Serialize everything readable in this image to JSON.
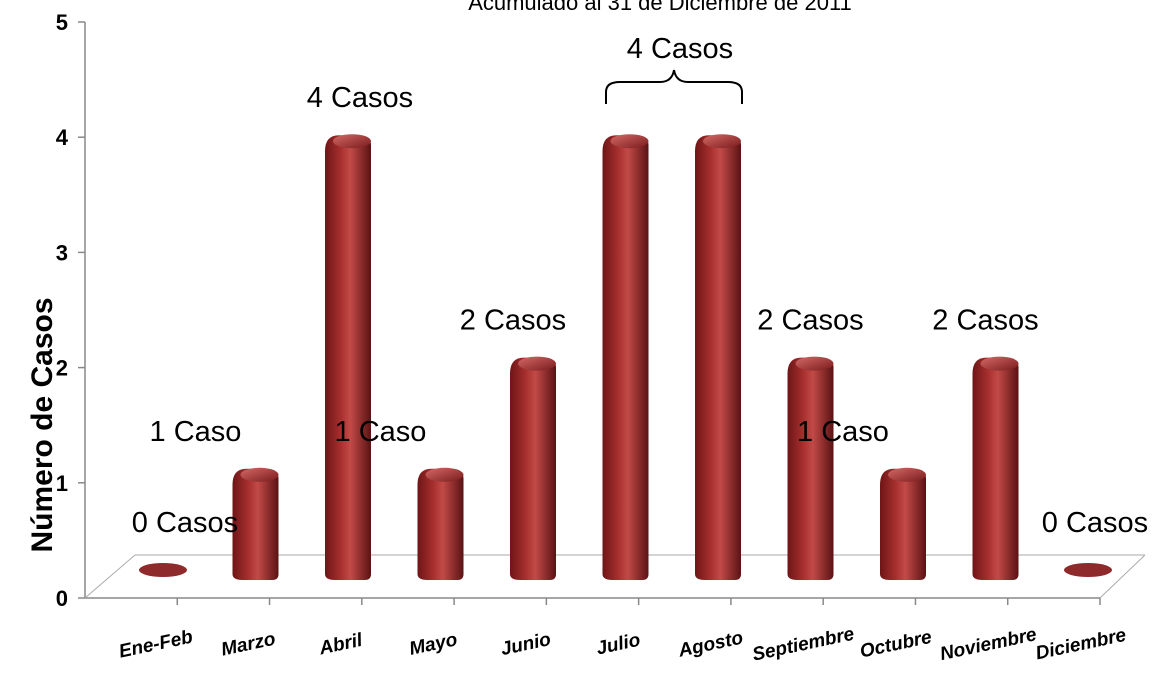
{
  "chart_data": {
    "type": "bar",
    "subtitle": "Acumulado al 31 de Diciembre de 2011",
    "ylabel": "Número de Casos",
    "xlabel": "",
    "ylim": [
      0,
      5
    ],
    "yticks": [
      "0",
      "1",
      "2",
      "3",
      "4",
      "5"
    ],
    "categories": [
      "Ene-Feb",
      "Marzo",
      "Abril",
      "Mayo",
      "Junio",
      "Julio",
      "Agosto",
      "Septiembre",
      "Octubre",
      "Noviembre",
      "Diciembre"
    ],
    "values": [
      0,
      1,
      4,
      1,
      2,
      4,
      4,
      2,
      1,
      2,
      0
    ],
    "data_labels": [
      "0 Casos",
      "1 Caso",
      "4 Casos",
      "1 Caso",
      "2 Casos",
      "",
      "",
      "2 Casos",
      "1 Caso",
      "2 Casos",
      "0 Casos"
    ],
    "group_label": "4 Casos",
    "colors": {
      "bar": "#8e1f22",
      "bar_light": "#c9504f",
      "bar_dark": "#5a1214"
    },
    "grid": false,
    "legend": "none"
  }
}
